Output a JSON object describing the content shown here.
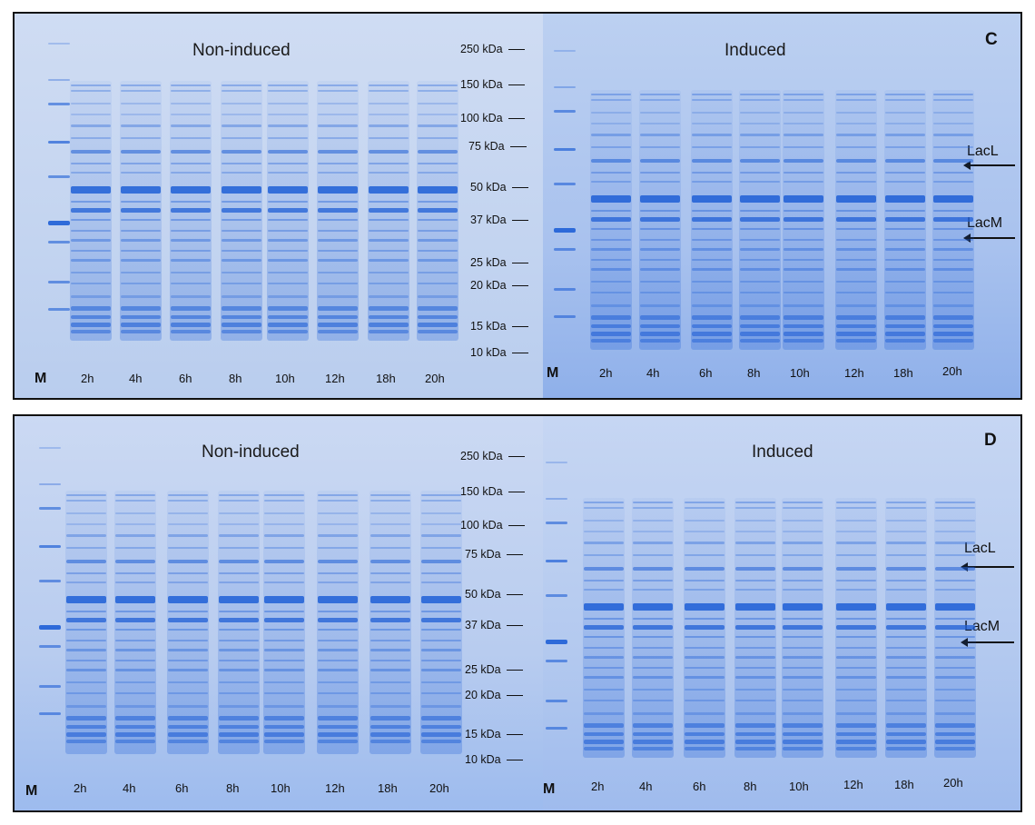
{
  "panels": [
    {
      "letter": "C",
      "left_title": "Non-induced",
      "right_title": "Induced",
      "marker_label": "M",
      "lanes": [
        "2h",
        "4h",
        "6h",
        "8h",
        "10h",
        "12h",
        "18h",
        "20h"
      ],
      "mw_markers": [
        "250 kDa",
        "150 kDa",
        "100 kDa",
        "75 kDa",
        "50 kDa",
        "37 kDa",
        "25 kDa",
        "20 kDa",
        "15 kDa",
        "10 kDa"
      ],
      "callouts": [
        "LacL",
        "LacM"
      ]
    },
    {
      "letter": "D",
      "left_title": "Non-induced",
      "right_title": "Induced",
      "marker_label": "M",
      "lanes": [
        "2h",
        "4h",
        "6h",
        "8h",
        "10h",
        "12h",
        "18h",
        "20h"
      ],
      "mw_markers": [
        "250 kDa",
        "150 kDa",
        "100 kDa",
        "75 kDa",
        "50 kDa",
        "37 kDa",
        "25 kDa",
        "20 kDa",
        "15 kDa",
        "10 kDa"
      ],
      "callouts": [
        "LacL",
        "LacM"
      ]
    }
  ],
  "colors": {
    "stain": "#1f5fd6",
    "gel_background": "#c3d4f0",
    "text": "#111111"
  }
}
